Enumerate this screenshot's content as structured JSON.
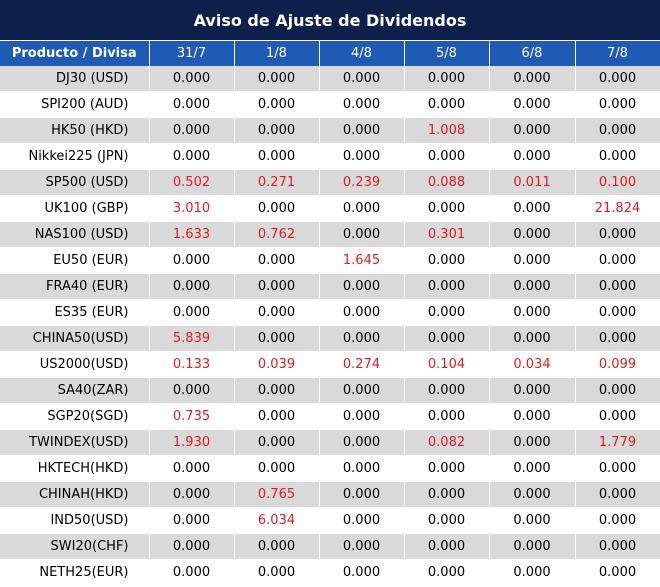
{
  "title": "Aviso de Ajuste de Dividendos",
  "header": {
    "product_label": "Producto / Divisa",
    "dates": [
      "31/7",
      "1/8",
      "4/8",
      "5/8",
      "6/8",
      "7/8"
    ]
  },
  "colors": {
    "title_bg": "#0d1f4a",
    "header_bg": "#1f5bb5",
    "row_alt_bg": "#d9d9d9",
    "highlight": "#e11b22"
  },
  "rows": [
    {
      "product": "DJ30 (USD)",
      "values": [
        "0.000",
        "0.000",
        "0.000",
        "0.000",
        "0.000",
        "0.000"
      ]
    },
    {
      "product": "SPI200 (AUD)",
      "values": [
        "0.000",
        "0.000",
        "0.000",
        "0.000",
        "0.000",
        "0.000"
      ]
    },
    {
      "product": "HK50 (HKD)",
      "values": [
        "0.000",
        "0.000",
        "0.000",
        "1.008",
        "0.000",
        "0.000"
      ]
    },
    {
      "product": "Nikkei225 (JPN)",
      "values": [
        "0.000",
        "0.000",
        "0.000",
        "0.000",
        "0.000",
        "0.000"
      ]
    },
    {
      "product": "SP500 (USD)",
      "values": [
        "0.502",
        "0.271",
        "0.239",
        "0.088",
        "0.011",
        "0.100"
      ]
    },
    {
      "product": "UK100 (GBP)",
      "values": [
        "3.010",
        "0.000",
        "0.000",
        "0.000",
        "0.000",
        "21.824"
      ]
    },
    {
      "product": "NAS100 (USD)",
      "values": [
        "1.633",
        "0.762",
        "0.000",
        "0.301",
        "0.000",
        "0.000"
      ]
    },
    {
      "product": "EU50 (EUR)",
      "values": [
        "0.000",
        "0.000",
        "1.645",
        "0.000",
        "0.000",
        "0.000"
      ]
    },
    {
      "product": "FRA40 (EUR)",
      "values": [
        "0.000",
        "0.000",
        "0.000",
        "0.000",
        "0.000",
        "0.000"
      ]
    },
    {
      "product": "ES35 (EUR)",
      "values": [
        "0.000",
        "0.000",
        "0.000",
        "0.000",
        "0.000",
        "0.000"
      ]
    },
    {
      "product": "CHINA50(USD)",
      "values": [
        "5.839",
        "0.000",
        "0.000",
        "0.000",
        "0.000",
        "0.000"
      ]
    },
    {
      "product": "US2000(USD)",
      "values": [
        "0.133",
        "0.039",
        "0.274",
        "0.104",
        "0.034",
        "0.099"
      ]
    },
    {
      "product": "SA40(ZAR)",
      "values": [
        "0.000",
        "0.000",
        "0.000",
        "0.000",
        "0.000",
        "0.000"
      ]
    },
    {
      "product": "SGP20(SGD)",
      "values": [
        "0.735",
        "0.000",
        "0.000",
        "0.000",
        "0.000",
        "0.000"
      ]
    },
    {
      "product": "TWINDEX(USD)",
      "values": [
        "1.930",
        "0.000",
        "0.000",
        "0.082",
        "0.000",
        "1.779"
      ]
    },
    {
      "product": "HKTECH(HKD)",
      "values": [
        "0.000",
        "0.000",
        "0.000",
        "0.000",
        "0.000",
        "0.000"
      ]
    },
    {
      "product": "CHINAH(HKD)",
      "values": [
        "0.000",
        "0.765",
        "0.000",
        "0.000",
        "0.000",
        "0.000"
      ]
    },
    {
      "product": "IND50(USD)",
      "values": [
        "0.000",
        "6.034",
        "0.000",
        "0.000",
        "0.000",
        "0.000"
      ]
    },
    {
      "product": "SWI20(CHF)",
      "values": [
        "0.000",
        "0.000",
        "0.000",
        "0.000",
        "0.000",
        "0.000"
      ]
    },
    {
      "product": "NETH25(EUR)",
      "values": [
        "0.000",
        "0.000",
        "0.000",
        "0.000",
        "0.000",
        "0.000"
      ]
    }
  ]
}
